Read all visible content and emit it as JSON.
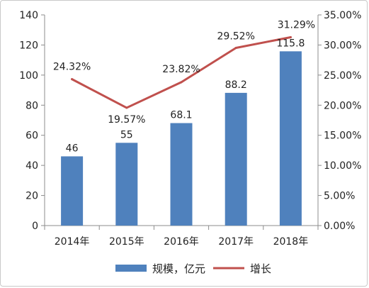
{
  "chart_data": {
    "type": "bar",
    "categories": [
      "2014年",
      "2015年",
      "2016年",
      "2017年",
      "2018年"
    ],
    "series": [
      {
        "name": "规模，亿元",
        "type": "bar",
        "axis": "left",
        "values": [
          46,
          55,
          68.1,
          88.2,
          115.8
        ],
        "labels": [
          "46",
          "55",
          "68.1",
          "88.2",
          "115.8"
        ],
        "color": "#4f81bd"
      },
      {
        "name": "增长",
        "type": "line",
        "axis": "right",
        "values": [
          24.32,
          19.57,
          23.82,
          29.52,
          31.29
        ],
        "labels": [
          "24.32%",
          "19.57%",
          "23.82%",
          "29.52%",
          "31.29%"
        ],
        "color": "#c0504d"
      }
    ],
    "y_left": {
      "range": [
        0,
        140
      ],
      "ticks": [
        "0",
        "20",
        "40",
        "60",
        "80",
        "100",
        "120",
        "140"
      ]
    },
    "y_right": {
      "range": [
        0,
        35
      ],
      "ticks": [
        "0.00%",
        "5.00%",
        "10.00%",
        "15.00%",
        "20.00%",
        "25.00%",
        "30.00%",
        "35.00%"
      ]
    },
    "gridlines": false,
    "legend_position": "bottom"
  }
}
